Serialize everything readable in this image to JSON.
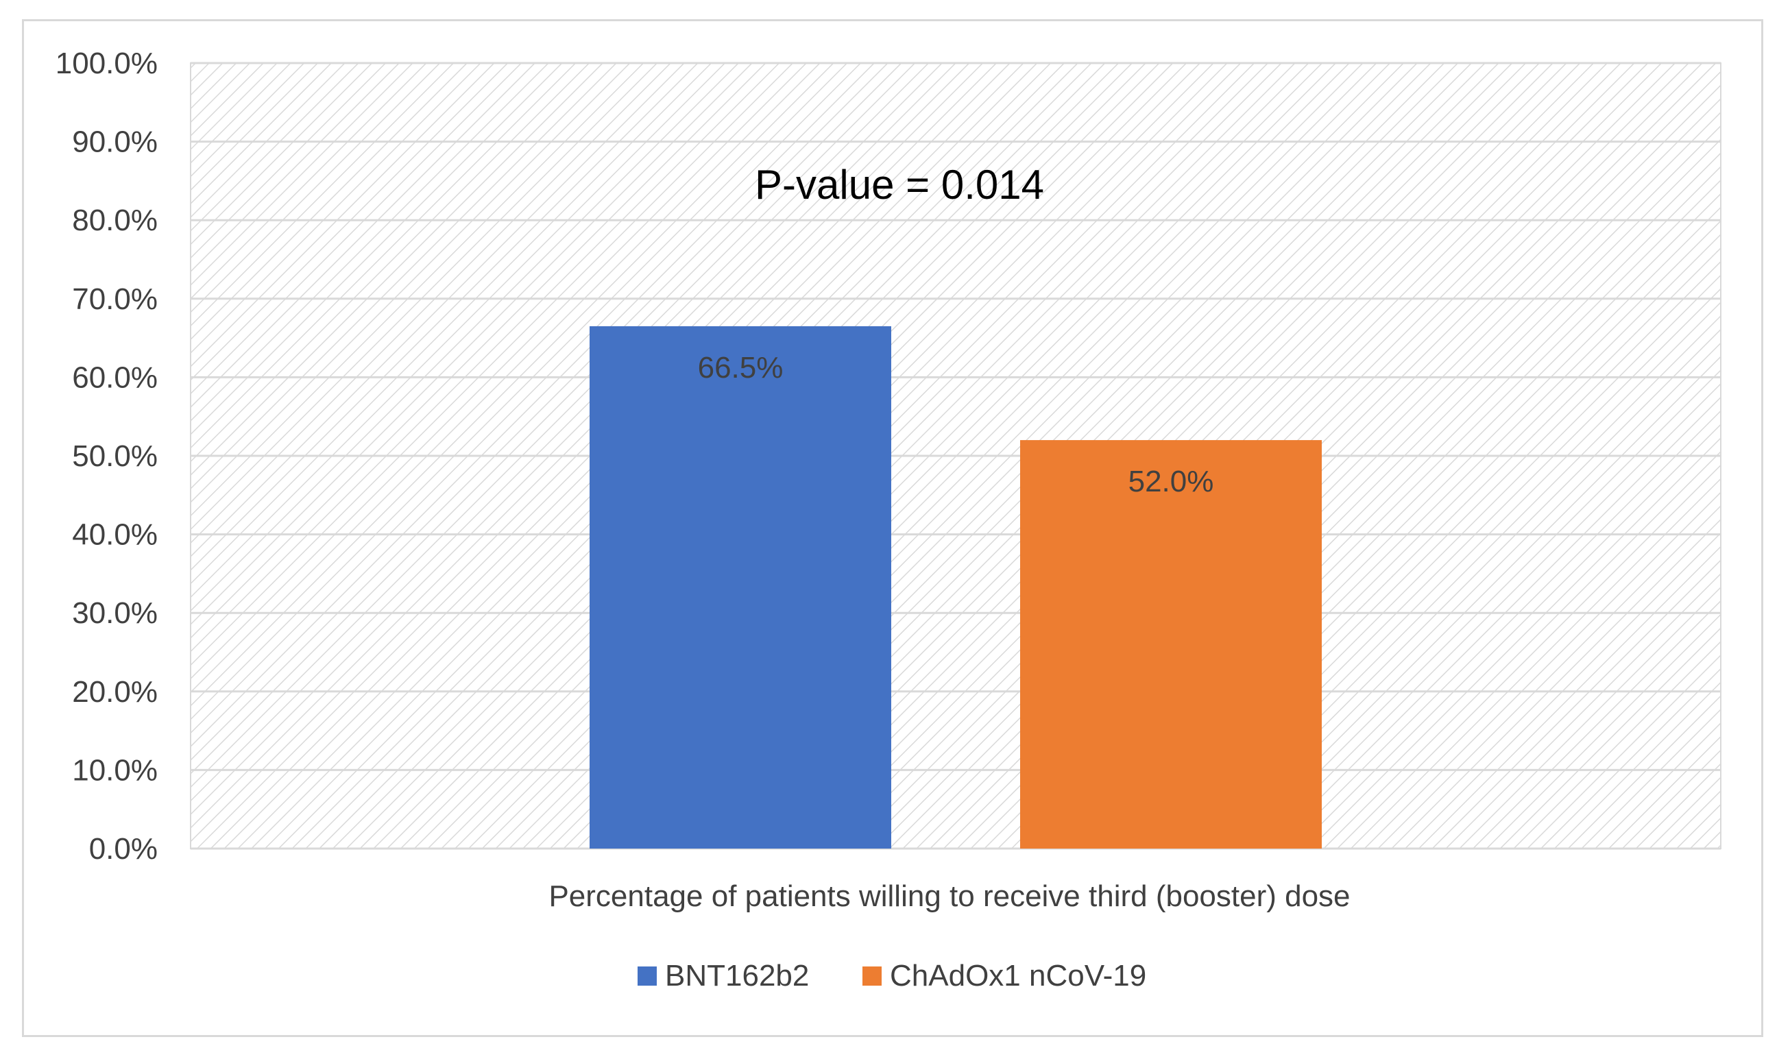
{
  "chart_data": {
    "type": "bar",
    "title": "",
    "xlabel": "",
    "ylabel": "",
    "categories": [
      "Percentage of patients willing to receive third (booster) dose"
    ],
    "series": [
      {
        "name": "BNT162b2",
        "values": [
          66.5
        ],
        "label": "66.5%",
        "color": "#4472C4"
      },
      {
        "name": "ChAdOx1 nCoV-19",
        "values": [
          52.0
        ],
        "label": "52.0%",
        "color": "#ED7D31"
      }
    ],
    "ylim": [
      0,
      100
    ],
    "yticks": [
      0,
      10,
      20,
      30,
      40,
      50,
      60,
      70,
      80,
      90,
      100
    ],
    "ytick_labels": [
      "0.0%",
      "10.0%",
      "20.0%",
      "30.0%",
      "40.0%",
      "50.0%",
      "60.0%",
      "70.0%",
      "80.0%",
      "90.0%",
      "100.0%"
    ],
    "grid": true,
    "legend": "bottom",
    "annotation": "P-value = 0.014",
    "colors": {
      "gridline": "#d9d9d9",
      "hatch": "#d9d9d9",
      "text": "#404040"
    }
  }
}
